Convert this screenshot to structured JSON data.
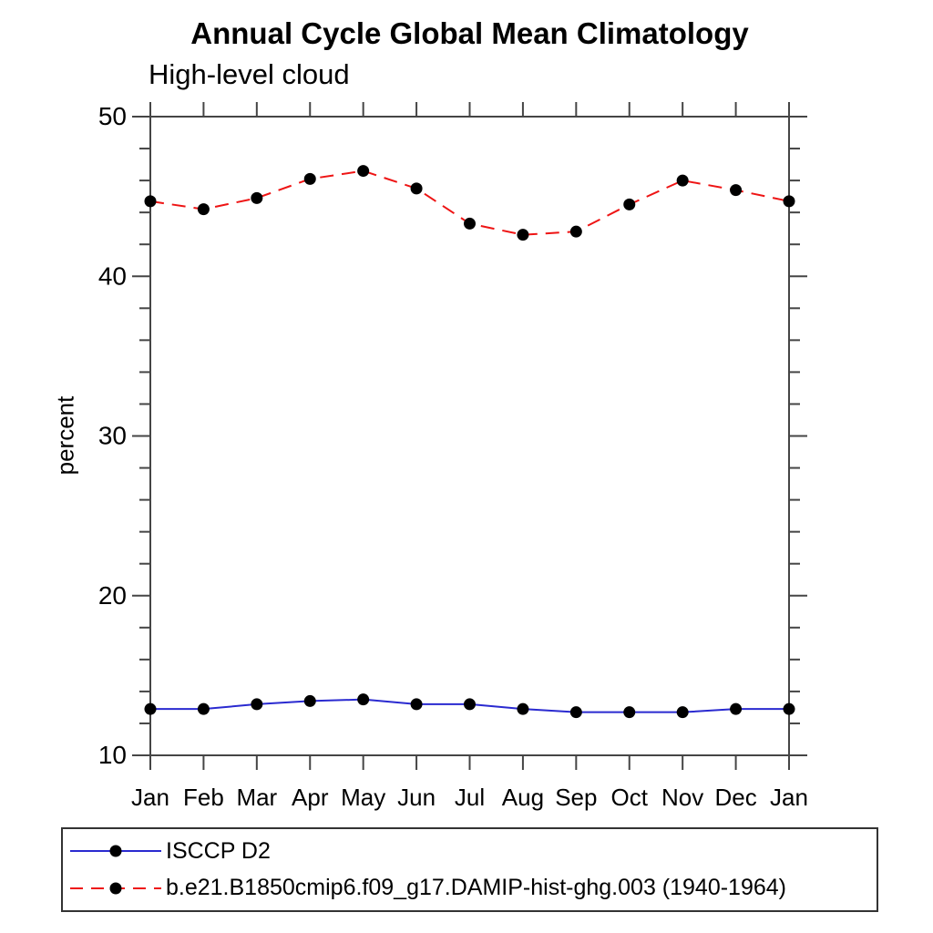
{
  "chart_data": {
    "type": "line",
    "title": "Annual Cycle Global Mean Climatology",
    "subtitle": "High-level cloud",
    "ylabel": "percent",
    "xlabel": "",
    "categories": [
      "Jan",
      "Feb",
      "Mar",
      "Apr",
      "May",
      "Jun",
      "Jul",
      "Aug",
      "Sep",
      "Oct",
      "Nov",
      "Dec",
      "Jan"
    ],
    "series": [
      {
        "name": "ISCCP D2",
        "color": "#2a2ad0",
        "line_style": "solid",
        "marker": "filled-circle",
        "marker_color": "#000000",
        "values": [
          12.9,
          12.9,
          13.2,
          13.4,
          13.5,
          13.2,
          13.2,
          12.9,
          12.7,
          12.7,
          12.7,
          12.9,
          12.9
        ]
      },
      {
        "name": "b.e21.B1850cmip6.f09_g17.DAMIP-hist-ghg.003 (1940-1964)",
        "color": "#ee1414",
        "line_style": "dashed",
        "marker": "filled-circle",
        "marker_color": "#000000",
        "values": [
          44.7,
          44.2,
          44.9,
          46.1,
          46.6,
          45.5,
          43.3,
          42.6,
          42.8,
          44.5,
          46.0,
          45.4,
          44.7
        ]
      }
    ],
    "ylim": [
      10,
      50
    ],
    "ytick_major": [
      10,
      20,
      30,
      40,
      50
    ],
    "ytick_minor_step": 2,
    "grid": false,
    "legend_position": "bottom",
    "axis_color": "#454545",
    "tick_label_color": "#000000"
  }
}
